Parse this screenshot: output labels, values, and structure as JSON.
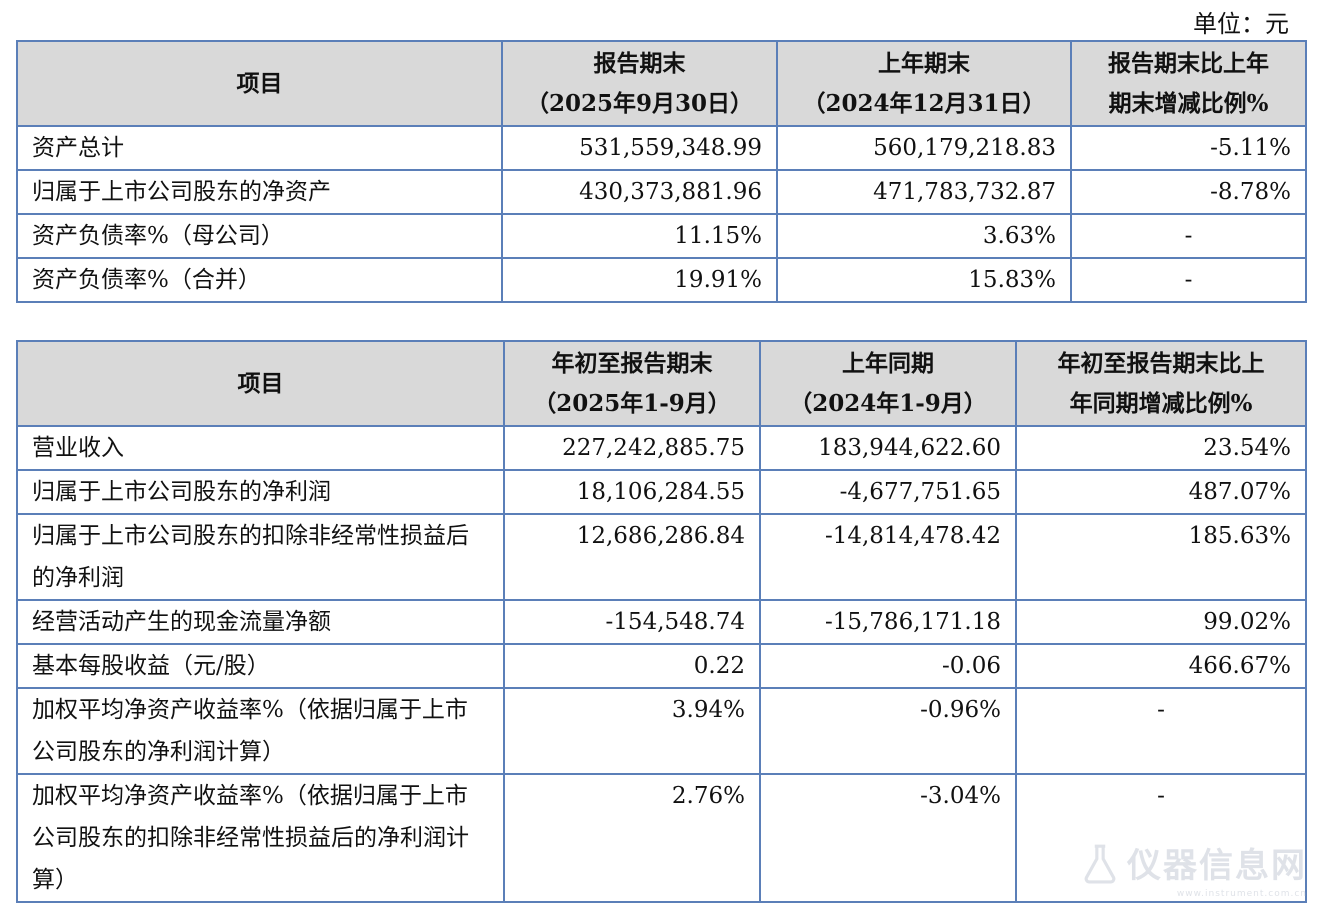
{
  "unit_label": "单位：元",
  "table1": {
    "headers": {
      "item": "项目",
      "col1_l1": "报告期末",
      "col1_l2": "（2025年9月30日）",
      "col2_l1": "上年期末",
      "col2_l2": "（2024年12月31日）",
      "col3_l1": "报告期末比上年",
      "col3_l2": "期末增减比例%"
    },
    "rows": [
      {
        "item": "资产总计",
        "v1": "531,559,348.99",
        "v2": "560,179,218.83",
        "v3": "-5.11%"
      },
      {
        "item": "归属于上市公司股东的净资产",
        "v1": "430,373,881.96",
        "v2": "471,783,732.87",
        "v3": "-8.78%"
      },
      {
        "item": "资产负债率%（母公司）",
        "v1": "11.15%",
        "v2": "3.63%",
        "v3": "-"
      },
      {
        "item": "资产负债率%（合并）",
        "v1": "19.91%",
        "v2": "15.83%",
        "v3": "-"
      }
    ]
  },
  "table2": {
    "headers": {
      "item": "项目",
      "col1_l1": "年初至报告期末",
      "col1_l2": "（2025年1-9月）",
      "col2_l1": "上年同期",
      "col2_l2": "（2024年1-9月）",
      "col3_l1": "年初至报告期末比上",
      "col3_l2": "年同期增减比例%"
    },
    "rows": [
      {
        "item": "营业收入",
        "v1": "227,242,885.75",
        "v2": "183,944,622.60",
        "v3": "23.54%"
      },
      {
        "item": "归属于上市公司股东的净利润",
        "v1": "18,106,284.55",
        "v2": "-4,677,751.65",
        "v3": "487.07%"
      },
      {
        "item": "归属于上市公司股东的扣除非经常性损益后的净利润",
        "v1": "12,686,286.84",
        "v2": "-14,814,478.42",
        "v3": "185.63%"
      },
      {
        "item": "经营活动产生的现金流量净额",
        "v1": "-154,548.74",
        "v2": "-15,786,171.18",
        "v3": "99.02%"
      },
      {
        "item": "基本每股收益（元/股）",
        "v1": "0.22",
        "v2": "-0.06",
        "v3": "466.67%"
      },
      {
        "item": "加权平均净资产收益率%（依据归属于上市公司股东的净利润计算）",
        "v1": "3.94%",
        "v2": "-0.96%",
        "v3": "-"
      },
      {
        "item": "加权平均净资产收益率%（依据归属于上市公司股东的扣除非经常性损益后的净利润计算）",
        "v1": "2.76%",
        "v2": "-3.04%",
        "v3": "-"
      }
    ]
  },
  "watermark": {
    "text": "仪器信息网",
    "sub": "www.instrument.com.cn",
    "icon": "flask-icon"
  }
}
